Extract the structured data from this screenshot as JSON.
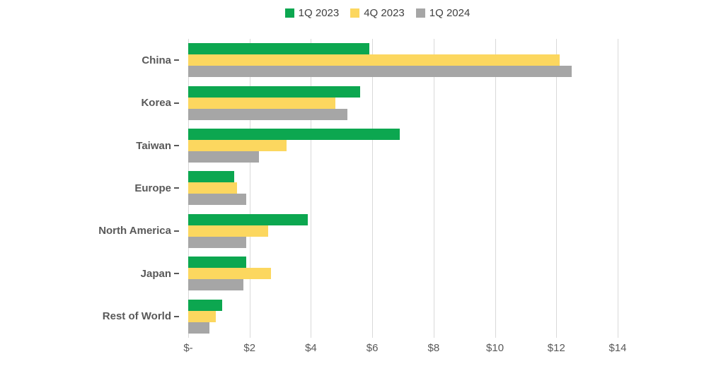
{
  "legend": {
    "items": [
      {
        "label": "1Q 2023",
        "color": "#0CA750"
      },
      {
        "label": "4Q 2023",
        "color": "#FCD75F"
      },
      {
        "label": "1Q 2024",
        "color": "#A6A6A6"
      }
    ]
  },
  "chart_data": {
    "type": "bar",
    "orientation": "horizontal",
    "title": "",
    "xlabel": "",
    "ylabel": "",
    "categories": [
      "China",
      "Korea",
      "Taiwan",
      "Europe",
      "North America",
      "Japan",
      "Rest of World"
    ],
    "series": [
      {
        "name": "1Q 2023",
        "color": "#0CA750",
        "values": [
          5.9,
          5.6,
          6.9,
          1.5,
          3.9,
          1.9,
          1.1
        ]
      },
      {
        "name": "4Q 2023",
        "color": "#FCD75F",
        "values": [
          12.1,
          4.8,
          3.2,
          1.6,
          2.6,
          2.7,
          0.9
        ]
      },
      {
        "name": "1Q 2024",
        "color": "#A6A6A6",
        "values": [
          12.5,
          5.2,
          2.3,
          1.9,
          1.9,
          1.8,
          0.7
        ]
      }
    ],
    "x_ticks": [
      "$-",
      "$2",
      "$4",
      "$6",
      "$8",
      "$10",
      "$12",
      "$14"
    ],
    "x_tick_values": [
      0,
      2,
      4,
      6,
      8,
      10,
      12,
      14
    ],
    "xlim": [
      0,
      14
    ],
    "grid": "vertical-major",
    "gridline_color": "#D9D9D9",
    "label_color": "#595959",
    "legend_position": "top-center"
  }
}
